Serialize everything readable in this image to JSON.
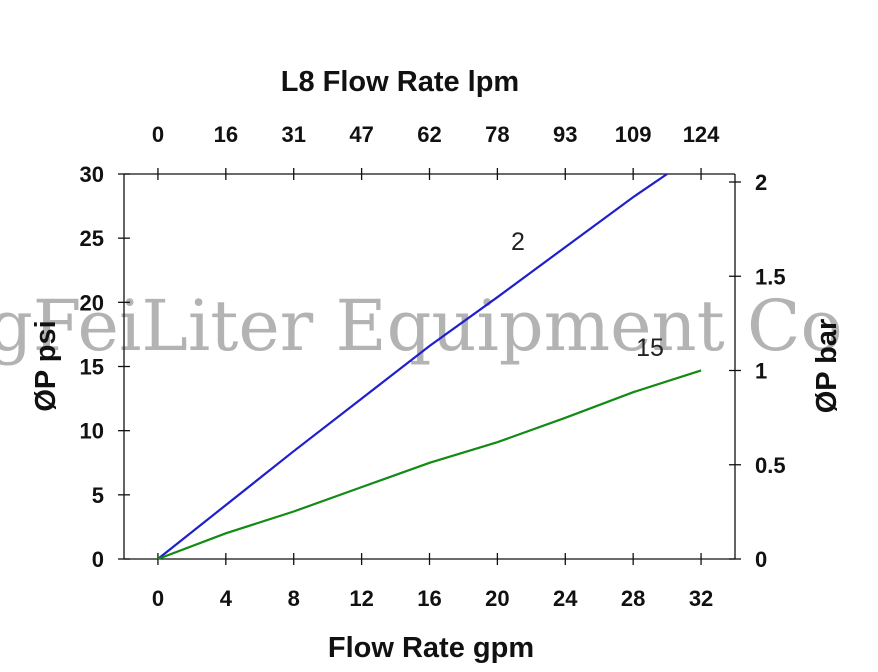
{
  "chart_data": {
    "type": "line",
    "title": "L8  Flow Rate lpm",
    "xlabel": "Flow Rate gpm",
    "ylabel": "ØP psi",
    "y2label": "ØP bar",
    "xlim": [
      -2,
      34
    ],
    "ylim": [
      0,
      30
    ],
    "y2lim": [
      0,
      2
    ],
    "x_ticks": [
      "0",
      "4",
      "8",
      "12",
      "16",
      "20",
      "24",
      "28",
      "32"
    ],
    "x2_ticks": [
      "0",
      "16",
      "31",
      "47",
      "62",
      "78",
      "93",
      "109",
      "124"
    ],
    "y_ticks": [
      "0",
      "5",
      "10",
      "15",
      "20",
      "25",
      "30"
    ],
    "y2_ticks": [
      "0",
      "0.5",
      "1",
      "1.5",
      "2"
    ],
    "grid": false,
    "series": [
      {
        "name": "2",
        "color": "#1f1fcc",
        "x": [
          0,
          4,
          8,
          12,
          16,
          20,
          24,
          28,
          30
        ],
        "y": [
          0,
          4.2,
          8.4,
          12.5,
          16.6,
          20.4,
          24.3,
          28.2,
          30
        ]
      },
      {
        "name": "15",
        "color": "#138a13",
        "x": [
          0,
          4,
          8,
          12,
          16,
          20,
          24,
          28,
          32
        ],
        "y": [
          0,
          2.0,
          3.7,
          5.6,
          7.5,
          9.1,
          11.0,
          13.0,
          14.7
        ]
      }
    ]
  },
  "watermark": "gFeiLiter Equipment Co"
}
